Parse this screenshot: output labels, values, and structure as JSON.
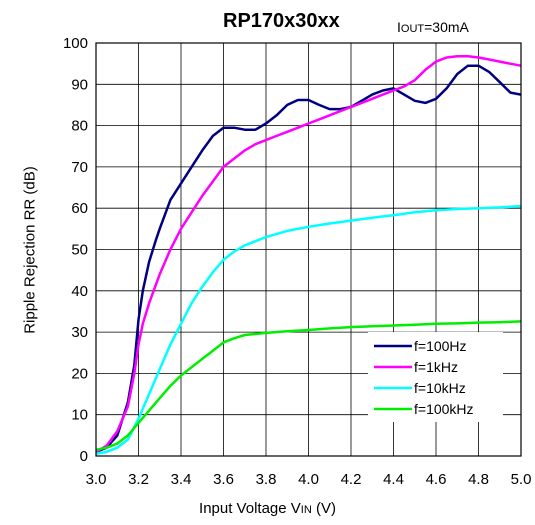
{
  "chart_data": {
    "type": "line",
    "title": "RP170x30xx",
    "condition": {
      "main": "I",
      "sub": "OUT",
      "rest": "=30mA"
    },
    "xlabel": {
      "pre": "Input Voltage V",
      "sub": "IN",
      "post": " (V)"
    },
    "ylabel": "Ripple Rejection RR (dB)",
    "xlim": [
      3.0,
      5.0
    ],
    "ylim": [
      0,
      100
    ],
    "xticks": [
      "3.0",
      "3.2",
      "3.4",
      "3.6",
      "3.8",
      "4.0",
      "4.2",
      "4.4",
      "4.6",
      "4.8",
      "5.0"
    ],
    "yticks": [
      "0",
      "10",
      "20",
      "30",
      "40",
      "50",
      "60",
      "70",
      "80",
      "90",
      "100"
    ],
    "grid": true,
    "legend_position": "bottom-right",
    "series": [
      {
        "name": "f=100Hz",
        "color": "#000080",
        "x": [
          3.0,
          3.05,
          3.1,
          3.15,
          3.18,
          3.2,
          3.22,
          3.25,
          3.28,
          3.3,
          3.35,
          3.4,
          3.45,
          3.5,
          3.55,
          3.6,
          3.65,
          3.7,
          3.75,
          3.8,
          3.85,
          3.9,
          3.95,
          4.0,
          4.05,
          4.1,
          4.15,
          4.2,
          4.25,
          4.3,
          4.35,
          4.4,
          4.45,
          4.5,
          4.55,
          4.6,
          4.65,
          4.7,
          4.75,
          4.8,
          4.85,
          4.9,
          4.95,
          5.0
        ],
        "y": [
          1,
          2,
          5,
          13,
          22,
          33,
          40,
          47,
          52,
          55,
          62,
          66,
          70,
          74,
          77.5,
          79.5,
          79.5,
          79,
          79,
          80.5,
          82.5,
          85,
          86.2,
          86.2,
          85,
          84,
          84,
          84.5,
          86,
          87.5,
          88.5,
          89,
          87.5,
          86,
          85.5,
          86.5,
          89,
          92.5,
          94.5,
          94.5,
          93,
          90.5,
          88,
          87.5
        ]
      },
      {
        "name": "f=1kHz",
        "color": "#ff00ff",
        "x": [
          3.0,
          3.05,
          3.1,
          3.15,
          3.18,
          3.2,
          3.22,
          3.25,
          3.3,
          3.35,
          3.4,
          3.45,
          3.5,
          3.55,
          3.6,
          3.65,
          3.7,
          3.75,
          3.8,
          3.85,
          3.9,
          3.95,
          4.0,
          4.05,
          4.1,
          4.15,
          4.2,
          4.25,
          4.3,
          4.35,
          4.4,
          4.45,
          4.5,
          4.55,
          4.6,
          4.65,
          4.7,
          4.75,
          4.8,
          4.85,
          4.9,
          4.95,
          5.0
        ],
        "y": [
          1,
          2.5,
          6,
          12,
          20,
          27,
          32,
          37,
          44,
          50,
          55,
          59,
          63,
          66.5,
          70,
          72,
          74,
          75.5,
          76.5,
          77.5,
          78.5,
          79.5,
          80.5,
          81.5,
          82.5,
          83.5,
          84.5,
          85.5,
          86.5,
          87.5,
          88.5,
          89.5,
          91,
          93.5,
          95.5,
          96.5,
          96.8,
          96.8,
          96.5,
          96,
          95.5,
          95,
          94.5
        ]
      },
      {
        "name": "f=10kHz",
        "color": "#00ffff",
        "x": [
          3.0,
          3.05,
          3.1,
          3.15,
          3.2,
          3.25,
          3.3,
          3.35,
          3.4,
          3.45,
          3.5,
          3.55,
          3.6,
          3.65,
          3.7,
          3.75,
          3.8,
          3.9,
          4.0,
          4.1,
          4.2,
          4.3,
          4.4,
          4.5,
          4.6,
          4.7,
          4.8,
          4.9,
          5.0
        ],
        "y": [
          0.5,
          1,
          2,
          4,
          9,
          15,
          21,
          27,
          32,
          37,
          41,
          44.5,
          47.5,
          49.5,
          51,
          52,
          53,
          54.5,
          55.5,
          56.3,
          57,
          57.7,
          58.3,
          59,
          59.5,
          59.8,
          60,
          60.2,
          60.5
        ]
      },
      {
        "name": "f=100kHz",
        "color": "#00ee00",
        "x": [
          3.0,
          3.05,
          3.1,
          3.15,
          3.2,
          3.25,
          3.3,
          3.35,
          3.4,
          3.45,
          3.5,
          3.55,
          3.6,
          3.65,
          3.7,
          3.8,
          3.9,
          4.0,
          4.1,
          4.2,
          4.3,
          4.4,
          4.5,
          4.6,
          4.7,
          4.8,
          4.9,
          5.0
        ],
        "y": [
          1.5,
          2,
          3,
          5,
          8,
          11,
          14,
          17,
          19.5,
          21.5,
          23.5,
          25.5,
          27.5,
          28.5,
          29.3,
          29.8,
          30.2,
          30.5,
          30.9,
          31.2,
          31.4,
          31.6,
          31.8,
          32,
          32.1,
          32.3,
          32.4,
          32.6
        ]
      }
    ]
  }
}
